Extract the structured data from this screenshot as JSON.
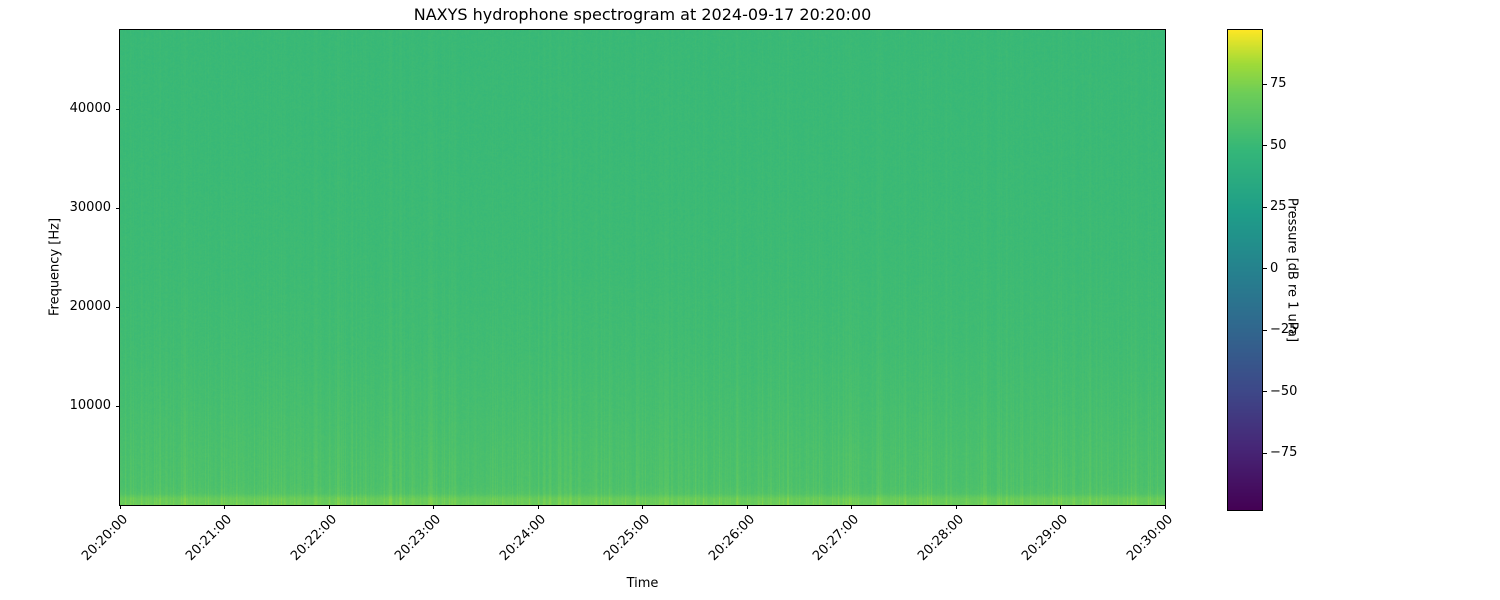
{
  "chart_data": {
    "type": "heatmap",
    "subtype": "spectrogram",
    "title": "NAXYS hydrophone spectrogram at 2024-09-17 20:20:00",
    "xlabel": "Time",
    "ylabel": "Frequency [Hz]",
    "x_tick_labels": [
      "20:20:00",
      "20:21:00",
      "20:22:00",
      "20:23:00",
      "20:24:00",
      "20:25:00",
      "20:26:00",
      "20:27:00",
      "20:28:00",
      "20:29:00",
      "20:30:00"
    ],
    "y_ticks": [
      10000,
      20000,
      30000,
      40000
    ],
    "ylim": [
      0,
      48000
    ],
    "colorbar": {
      "label": "Pressure [dB re 1 uPa]",
      "ticks": [
        75,
        50,
        25,
        0,
        -25,
        -50,
        -75
      ],
      "vmin": -98,
      "vmax": 97,
      "colormap": "viridis"
    },
    "colormap_stops": [
      [
        0.0,
        68,
        1,
        84
      ],
      [
        0.13,
        71,
        39,
        119
      ],
      [
        0.25,
        62,
        73,
        137
      ],
      [
        0.38,
        49,
        104,
        142
      ],
      [
        0.5,
        38,
        130,
        142
      ],
      [
        0.62,
        31,
        158,
        137
      ],
      [
        0.75,
        53,
        183,
        121
      ],
      [
        0.87,
        110,
        206,
        88
      ],
      [
        0.93,
        160,
        219,
        57
      ],
      [
        1.0,
        253,
        231,
        37
      ]
    ],
    "intensity_profile_db": {
      "frequencies": [
        0,
        700,
        1200,
        2000,
        5000,
        10000,
        16000,
        24000,
        36000,
        48000
      ],
      "levels_db": [
        70,
        69,
        60,
        58,
        57,
        55,
        53,
        51.5,
        50.5,
        50
      ]
    },
    "noise": {
      "stripe_max_db": 9,
      "pixel_noise_db": 3,
      "seed": 42
    }
  }
}
